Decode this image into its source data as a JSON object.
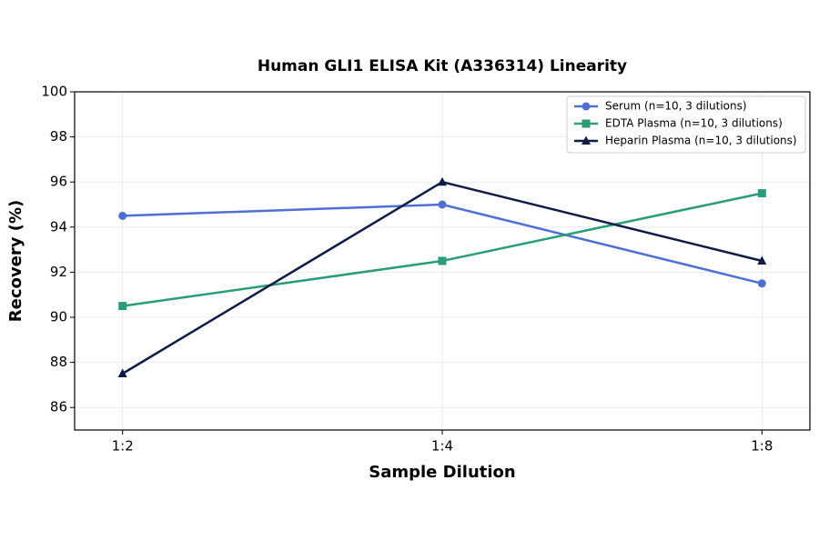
{
  "chart_data": {
    "type": "line",
    "title": "Human GLI1 ELISA Kit (A336314) Linearity",
    "x_label": "Sample Dilution",
    "y_label": "Recovery (%)",
    "categories": [
      "1:2",
      "1:4",
      "1:8"
    ],
    "series": [
      {
        "name": "Serum (n=10, 3 dilutions)",
        "color": "#4f6fd6",
        "marker": "circle",
        "values": [
          94.5,
          95,
          91.5
        ]
      },
      {
        "name": "EDTA Plasma (n=10, 3 dilutions)",
        "color": "#2a9d78",
        "marker": "square",
        "values": [
          90.5,
          92.5,
          95.5
        ]
      },
      {
        "name": "Heparin Plasma (n=10, 3 dilutions)",
        "color": "#0d1b45",
        "marker": "triangle",
        "values": [
          87.5,
          96,
          92.5
        ]
      }
    ],
    "ylim": [
      85,
      100
    ],
    "yticks": [
      86,
      88,
      90,
      92,
      94,
      96,
      98,
      100
    ],
    "grid": true,
    "legend": "upper right"
  }
}
